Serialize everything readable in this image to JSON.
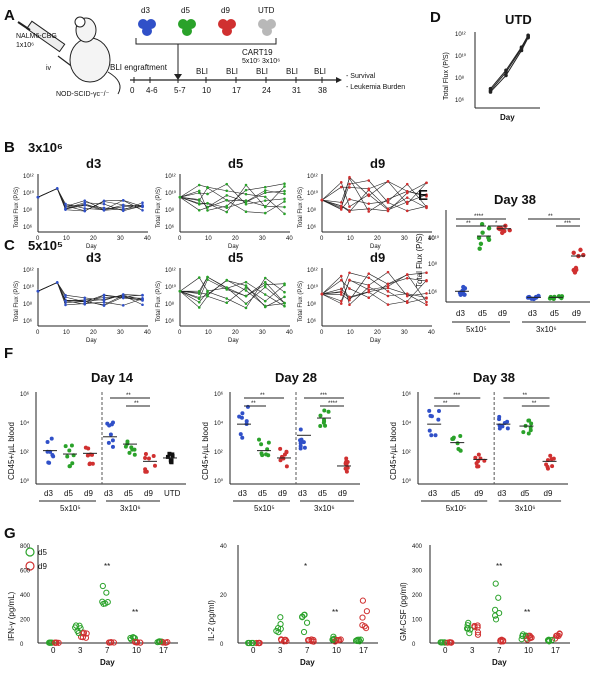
{
  "panels": {
    "A": {
      "letter": "A",
      "mouse_label_1": "NALM6-CBG",
      "mouse_label_2": "1x10⁶",
      "route": "iv",
      "strain": "NOD-SCID-γc⁻/⁻",
      "groups": [
        "d3",
        "d5",
        "d9",
        "UTD"
      ],
      "group_colors": [
        "#3050c8",
        "#2aa22a",
        "#d03030",
        "#a8a8a8"
      ],
      "product": "CART19",
      "doses": "5x10⁵ 3x10⁶",
      "engraftment": "BLI engraftment",
      "timeline_days": [
        "0",
        "4-6",
        "5-7",
        "10",
        "17",
        "24",
        "31",
        "38"
      ],
      "bli_labels": [
        "BLI",
        "BLI",
        "BLI",
        "BLI",
        "BLI"
      ],
      "outcomes": [
        "- Survival",
        "- Leukemia Burden"
      ]
    },
    "D": {
      "letter": "D",
      "title": "UTD",
      "ylabel": "Total Flux (P/S)",
      "xlabel": "Day",
      "yticks": [
        "10¹²",
        "10¹⁰",
        "10⁸",
        "10⁶"
      ]
    },
    "B": {
      "letter": "B",
      "dose": "3x10⁶",
      "subplots": [
        "d3",
        "d5",
        "d9"
      ],
      "ylabel": "Total Flux (P/S)",
      "xlabel": "Day",
      "xticks": [
        "0",
        "10",
        "20",
        "30",
        "40"
      ],
      "yticks": [
        "10¹²",
        "10¹⁰",
        "10⁸",
        "10⁶"
      ]
    },
    "C": {
      "letter": "C",
      "dose": "5x10⁵",
      "subplots": [
        "d3",
        "d5",
        "d9"
      ],
      "ylabel": "Total Flux (P/S)",
      "xlabel": "Day",
      "xticks": [
        "0",
        "10",
        "20",
        "30",
        "40"
      ],
      "yticks": [
        "10¹²",
        "10¹⁰",
        "10⁸",
        "10⁶"
      ]
    },
    "E": {
      "letter": "E",
      "title": "Day 38",
      "ylabel": "Total Flux (P/S)",
      "yticks": [
        "10¹⁰",
        "10⁸",
        "10⁶"
      ],
      "categories": [
        "d3",
        "d5",
        "d9",
        "d3",
        "d5",
        "d9"
      ],
      "groups": [
        "5x10⁵",
        "3x10⁶"
      ],
      "sig": [
        "**",
        "****",
        "*",
        "**",
        "***"
      ]
    },
    "F": {
      "letter": "F",
      "ylabel": "CD45+/µL blood",
      "yticks": [
        "10⁶",
        "10⁴",
        "10²",
        "10⁰"
      ],
      "subplots": [
        {
          "title": "Day 14",
          "categories": [
            "d3",
            "d5",
            "d9",
            "d3",
            "d5",
            "d9",
            "UTD"
          ],
          "groups": [
            "5x10⁵",
            "3x10⁶"
          ],
          "sig": [
            "**",
            "**"
          ]
        },
        {
          "title": "Day 28",
          "categories": [
            "d3",
            "d5",
            "d9",
            "d3",
            "d5",
            "d9"
          ],
          "groups": [
            "5x10⁵",
            "3x10⁶"
          ],
          "sig": [
            "**",
            "**",
            "***",
            "****"
          ]
        },
        {
          "title": "Day 38",
          "categories": [
            "d3",
            "d5",
            "d9",
            "d3",
            "d5",
            "d9"
          ],
          "groups": [
            "5x10⁵",
            "3x10⁶"
          ],
          "sig": [
            "***",
            "**",
            "**",
            "**"
          ]
        }
      ]
    },
    "G": {
      "letter": "G",
      "legend": [
        "d5",
        "d9"
      ],
      "xlabel": "Day",
      "xticks": [
        "0",
        "3",
        "7",
        "10",
        "17"
      ],
      "subplots": [
        {
          "ylabel": "IFN-γ (pg/mL)",
          "yticks": [
            "0",
            "200",
            "400",
            "600",
            "800"
          ],
          "ymax": 800,
          "sig": [
            "**",
            "**"
          ]
        },
        {
          "ylabel": "IL-2 (pg/ml)",
          "yticks": [
            "0",
            "20",
            "40"
          ],
          "ymax": 40,
          "sig": [
            "*",
            "**"
          ]
        },
        {
          "ylabel": "GM-CSF (pg/ml)",
          "yticks": [
            "0",
            "100",
            "200",
            "300",
            "400"
          ],
          "ymax": 400,
          "sig": [
            "**",
            "**"
          ]
        }
      ]
    }
  },
  "chart_data": [
    {
      "type": "line",
      "panel": "D",
      "title": "UTD",
      "x": [
        7,
        14,
        21,
        24
      ],
      "series": [
        {
          "values": [
            3000000.0,
            100000000.0,
            20000000000.0,
            300000000000.0
          ]
        },
        {
          "values": [
            6000000.0,
            300000000.0,
            40000000000.0,
            500000000000.0
          ]
        },
        {
          "values": [
            4000000.0,
            200000000.0,
            30000000000.0,
            400000000000.0
          ]
        }
      ],
      "log_y": true
    },
    {
      "type": "bar",
      "panel": "E",
      "title": "Day 38",
      "categories": [
        "d3",
        "d5",
        "d9",
        "d3",
        "d5",
        "d9"
      ],
      "values": [
        500000.0,
        2000000000.0,
        6000000000.0,
        200000.0,
        200000.0,
        100000000.0
      ],
      "log_y": true
    }
  ]
}
